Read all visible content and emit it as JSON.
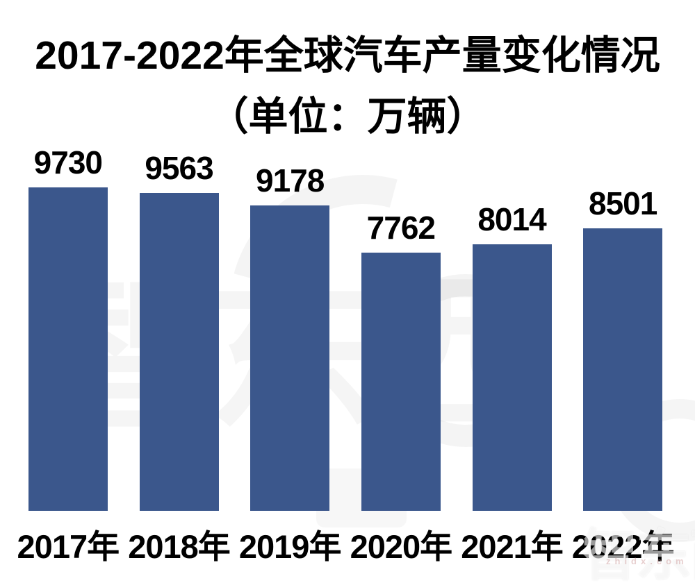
{
  "title": {
    "line1": "2017-2022年全球汽车产量变化情况",
    "line2": "（单位：万辆）"
  },
  "chart_data": {
    "type": "bar",
    "title": "2017-2022年全球汽车产量变化情况（单位：万辆）",
    "categories": [
      "2017年",
      "2018年",
      "2019年",
      "2020年",
      "2021年",
      "2022年"
    ],
    "values": [
      9730,
      9563,
      9178,
      7762,
      8014,
      8501
    ],
    "xlabel": "",
    "ylabel": "单位：万辆",
    "ylim": [
      0,
      10000
    ],
    "grid": false,
    "legend": false,
    "bar_color": "#3B578C",
    "value_labels_shown": true
  },
  "watermark": {
    "logo_text": "智东西",
    "small_text": "zhidx.com"
  }
}
